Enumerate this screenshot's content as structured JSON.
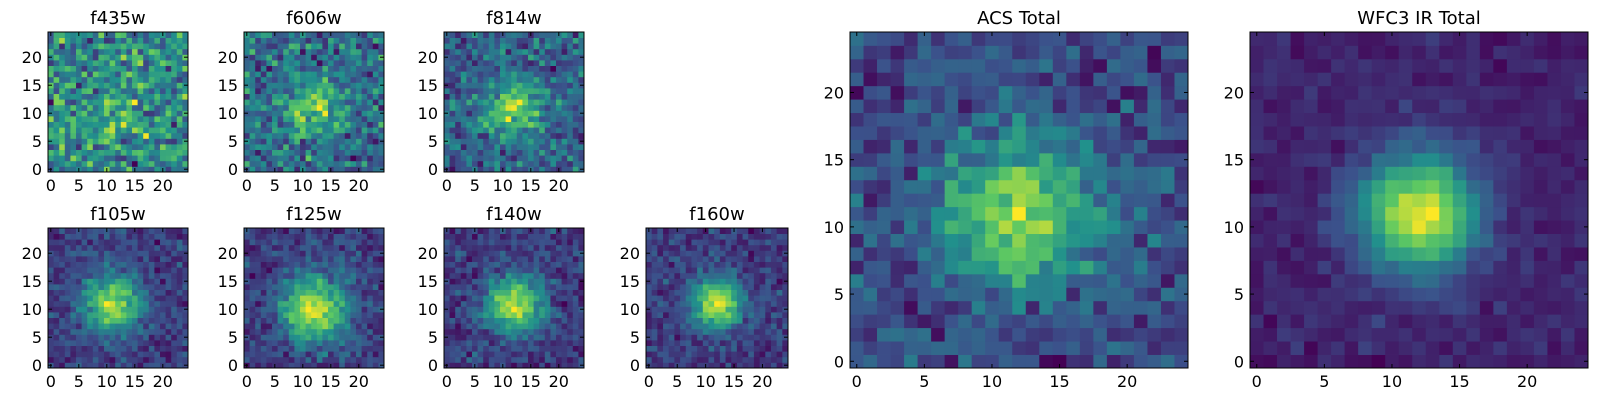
{
  "chart_data": [
    {
      "type": "heatmap",
      "title": "f435w",
      "x_ticks": [
        "0",
        "5",
        "10",
        "15",
        "20"
      ],
      "y_ticks": [
        "0",
        "5",
        "10",
        "15",
        "20"
      ],
      "grid_size": 25,
      "xlim": [
        -0.5,
        24.5
      ],
      "ylim": [
        -0.5,
        24.5
      ],
      "colormap": "viridis",
      "peak": [
        12,
        11
      ],
      "peak_strength": 0.1,
      "noise": 0.75,
      "spread": 4.0,
      "seed": 11
    },
    {
      "type": "heatmap",
      "title": "f606w",
      "x_ticks": [
        "0",
        "5",
        "10",
        "15",
        "20"
      ],
      "y_ticks": [
        "0",
        "5",
        "10",
        "15",
        "20"
      ],
      "grid_size": 25,
      "xlim": [
        -0.5,
        24.5
      ],
      "ylim": [
        -0.5,
        24.5
      ],
      "colormap": "viridis",
      "peak": [
        12,
        11
      ],
      "peak_strength": 0.3,
      "noise": 0.65,
      "spread": 3.5,
      "seed": 23
    },
    {
      "type": "heatmap",
      "title": "f814w",
      "x_ticks": [
        "0",
        "5",
        "10",
        "15",
        "20"
      ],
      "y_ticks": [
        "0",
        "5",
        "10",
        "15",
        "20"
      ],
      "grid_size": 25,
      "xlim": [
        -0.5,
        24.5
      ],
      "ylim": [
        -0.5,
        24.5
      ],
      "colormap": "viridis",
      "peak": [
        12,
        11
      ],
      "peak_strength": 0.4,
      "noise": 0.6,
      "spread": 3.5,
      "seed": 37
    },
    {
      "type": "heatmap",
      "title": "f105w",
      "x_ticks": [
        "0",
        "5",
        "10",
        "15",
        "20"
      ],
      "y_ticks": [
        "0",
        "5",
        "10",
        "15",
        "20"
      ],
      "grid_size": 25,
      "xlim": [
        -0.5,
        24.5
      ],
      "ylim": [
        -0.5,
        24.5
      ],
      "colormap": "viridis",
      "peak": [
        11,
        11
      ],
      "peak_strength": 0.8,
      "noise": 0.5,
      "spread": 3.5,
      "seed": 41
    },
    {
      "type": "heatmap",
      "title": "f125w",
      "x_ticks": [
        "0",
        "5",
        "10",
        "15",
        "20"
      ],
      "y_ticks": [
        "0",
        "5",
        "10",
        "15",
        "20"
      ],
      "grid_size": 25,
      "xlim": [
        -0.5,
        24.5
      ],
      "ylim": [
        -0.5,
        24.5
      ],
      "colormap": "viridis",
      "peak": [
        12,
        10
      ],
      "peak_strength": 0.8,
      "noise": 0.5,
      "spread": 4.0,
      "seed": 53
    },
    {
      "type": "heatmap",
      "title": "f140w",
      "x_ticks": [
        "0",
        "5",
        "10",
        "15",
        "20"
      ],
      "y_ticks": [
        "0",
        "5",
        "10",
        "15",
        "20"
      ],
      "grid_size": 25,
      "xlim": [
        -0.5,
        24.5
      ],
      "ylim": [
        -0.5,
        24.5
      ],
      "colormap": "viridis",
      "peak": [
        12,
        11
      ],
      "peak_strength": 0.8,
      "noise": 0.5,
      "spread": 3.5,
      "seed": 67
    },
    {
      "type": "heatmap",
      "title": "f160w",
      "x_ticks": [
        "0",
        "5",
        "10",
        "15",
        "20"
      ],
      "y_ticks": [
        "0",
        "5",
        "10",
        "15",
        "20"
      ],
      "grid_size": 25,
      "xlim": [
        -0.5,
        24.5
      ],
      "ylim": [
        -0.5,
        24.5
      ],
      "colormap": "viridis",
      "peak": [
        12,
        11
      ],
      "peak_strength": 1.0,
      "noise": 0.55,
      "spread": 3.0,
      "seed": 79
    },
    {
      "type": "heatmap",
      "title": "ACS Total",
      "x_ticks": [
        "0",
        "5",
        "10",
        "15",
        "20"
      ],
      "y_ticks": [
        "0",
        "5",
        "10",
        "15",
        "20"
      ],
      "grid_size": 25,
      "xlim": [
        -0.5,
        24.5
      ],
      "ylim": [
        -0.5,
        24.5
      ],
      "colormap": "viridis",
      "peak": [
        12,
        11
      ],
      "peak_strength": 0.5,
      "noise": 0.45,
      "spread": 4.0,
      "seed": 83
    },
    {
      "type": "heatmap",
      "title": "WFC3 IR Total",
      "x_ticks": [
        "0",
        "5",
        "10",
        "15",
        "20"
      ],
      "y_ticks": [
        "0",
        "5",
        "10",
        "15",
        "20"
      ],
      "grid_size": 25,
      "xlim": [
        -0.5,
        24.5
      ],
      "ylim": [
        -0.5,
        24.5
      ],
      "colormap": "viridis",
      "peak": [
        12,
        11
      ],
      "peak_strength": 1.2,
      "noise": 0.3,
      "spread": 3.0,
      "seed": 97
    }
  ],
  "colors": {
    "colormap": [
      "#440154",
      "#3b528b",
      "#21918c",
      "#5ec962",
      "#fde725"
    ],
    "axis": "#000000",
    "background": "#ffffff"
  }
}
